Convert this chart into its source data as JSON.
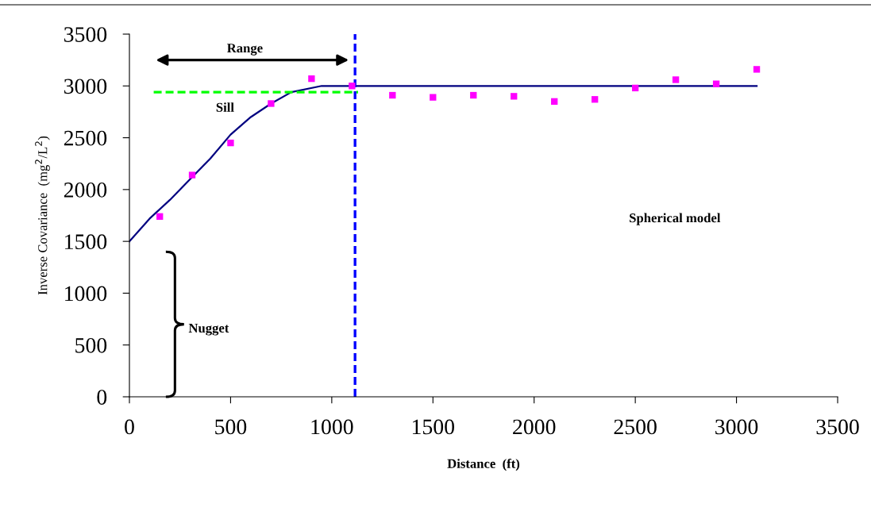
{
  "chart_data": {
    "type": "scatter",
    "xlabel": "Distance  (ft)",
    "ylabel": "Inverse Covariance  (mg$^{2}$/L$^{2}$)",
    "xlim": [
      0,
      3500
    ],
    "ylim": [
      0,
      3500
    ],
    "xticks": [
      0,
      500,
      1000,
      1500,
      2000,
      2500,
      3000,
      3500
    ],
    "yticks": [
      0,
      500,
      1000,
      1500,
      2000,
      2500,
      3000,
      3500
    ],
    "grid": false,
    "series": [
      {
        "type": "line",
        "color": "#000080",
        "marker": "none",
        "line_style": "solid",
        "x": [
          0,
          100,
          200,
          300,
          400,
          500,
          600,
          700,
          800,
          950,
          3100
        ],
        "values": [
          1500,
          1720,
          1900,
          2100,
          2300,
          2530,
          2700,
          2830,
          2940,
          3000,
          3000
        ]
      },
      {
        "color": "#ff00ff",
        "marker": "square",
        "x": [
          150,
          310,
          500,
          700,
          900,
          1100,
          1300,
          1500,
          1700,
          1900,
          2100,
          2300,
          2500,
          2700,
          2900,
          3100
        ],
        "values": [
          1740,
          2140,
          2450,
          2830,
          3070,
          3000,
          2910,
          2890,
          2910,
          2900,
          2850,
          2870,
          2980,
          3060,
          3020,
          3160
        ]
      },
      {
        "type": "line",
        "color": "#00ff00",
        "marker": "none",
        "line_style": "dashed",
        "x": [
          120,
          1130
        ],
        "values": [
          2940,
          2940
        ]
      }
    ],
    "ref_lines": [
      {
        "axis": "x",
        "value": 1115,
        "color": "#0000ff",
        "line_style": "dashed"
      }
    ],
    "annotations": [
      "Range",
      "Sill",
      "Nugget",
      "Spherical model"
    ]
  }
}
